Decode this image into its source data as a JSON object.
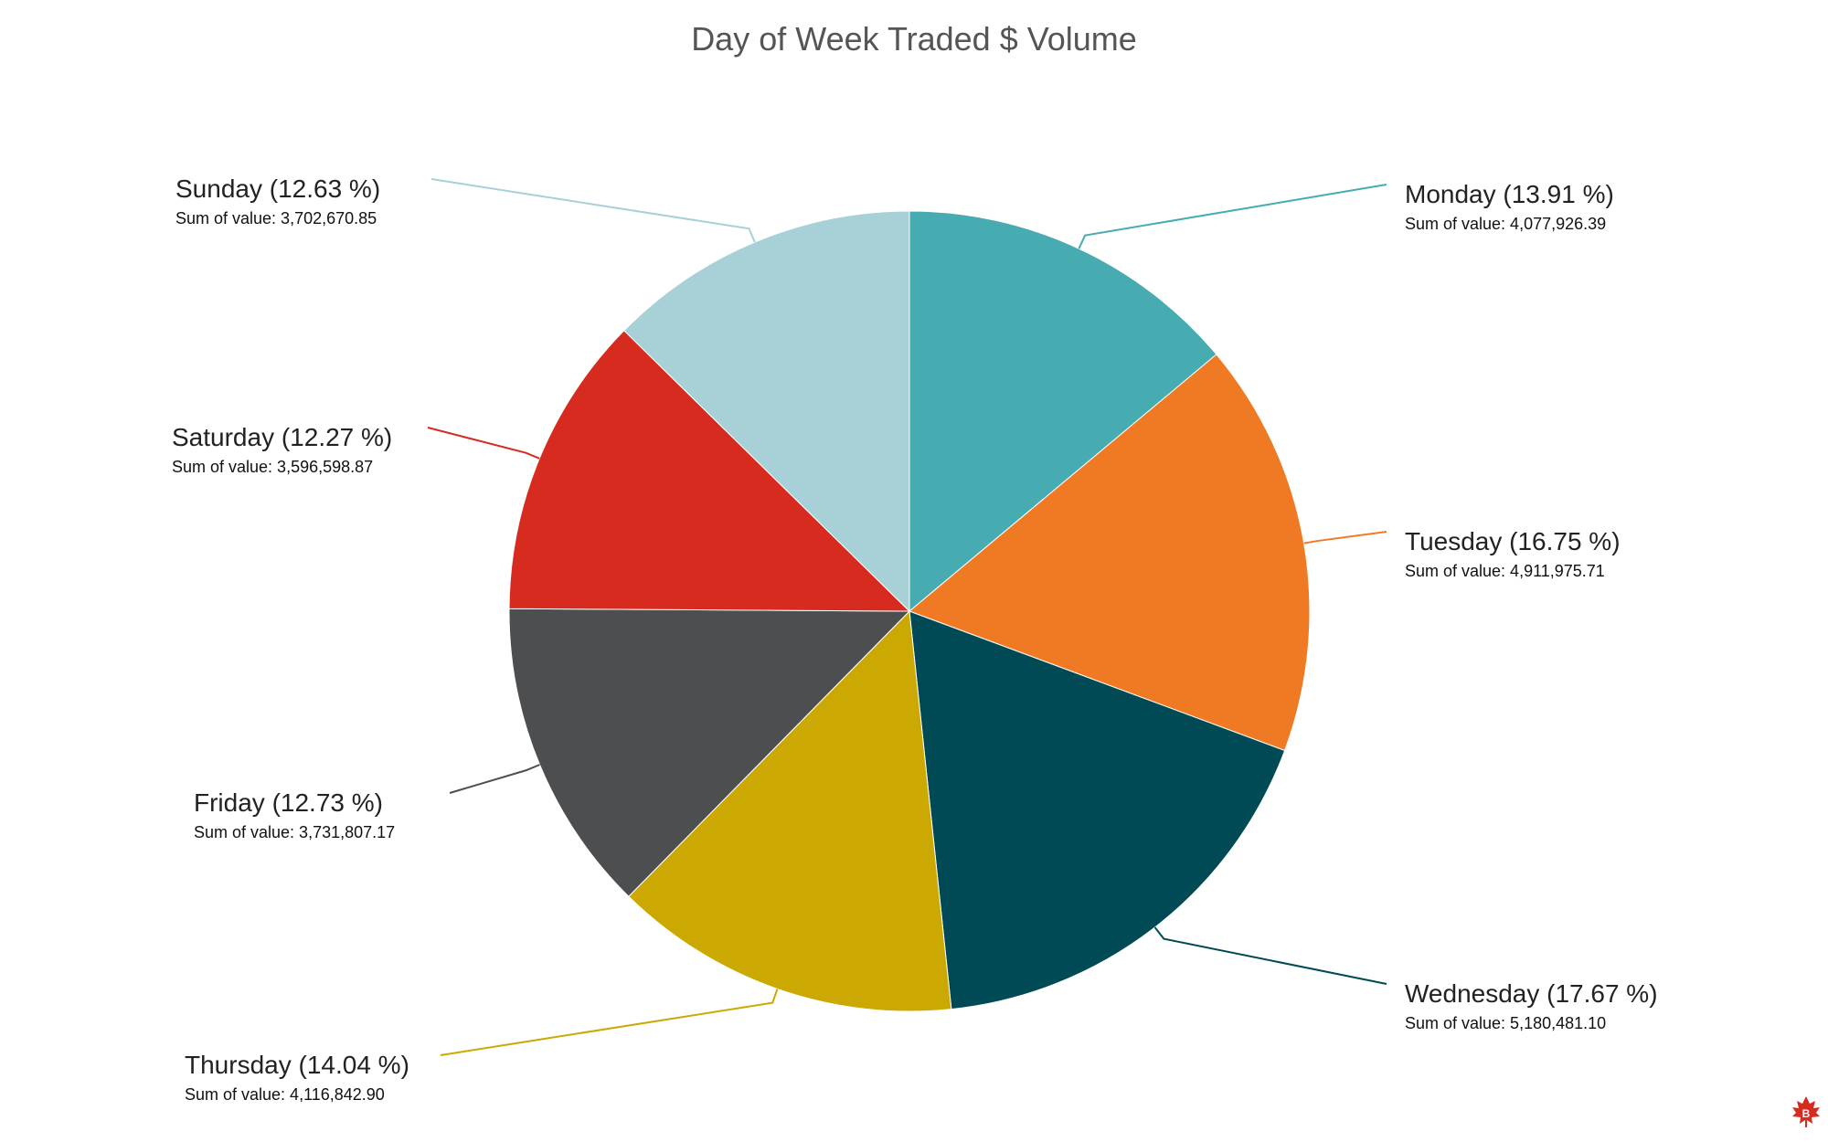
{
  "chart_data": {
    "type": "pie",
    "title": "Day of Week Traded $ Volume",
    "start_angle_deg": 0,
    "direction": "clockwise",
    "slices": [
      {
        "name": "Monday",
        "percent": 13.91,
        "value": 4077926.39,
        "label": "Monday (13.91 %)",
        "sublabel": "Sum of value: 4,077,926.39",
        "color": "#47acb2"
      },
      {
        "name": "Tuesday",
        "percent": 16.75,
        "value": 4911975.71,
        "label": "Tuesday (16.75 %)",
        "sublabel": "Sum of value: 4,911,975.71",
        "color": "#f07a24"
      },
      {
        "name": "Wednesday",
        "percent": 17.67,
        "value": 5180481.1,
        "label": "Wednesday (17.67 %)",
        "sublabel": "Sum of value: 5,180,481.10",
        "color": "#004a56"
      },
      {
        "name": "Thursday",
        "percent": 14.04,
        "value": 4116842.9,
        "label": "Thursday (14.04 %)",
        "sublabel": "Sum of value: 4,116,842.90",
        "color": "#cba902"
      },
      {
        "name": "Friday",
        "percent": 12.73,
        "value": 3731807.17,
        "label": "Friday (12.73 %)",
        "sublabel": "Sum of value: 3,731,807.17",
        "color": "#4d4e50"
      },
      {
        "name": "Saturday",
        "percent": 12.27,
        "value": 3596598.87,
        "label": "Saturday (12.27 %)",
        "sublabel": "Sum of value: 3,596,598.87",
        "color": "#d72b20"
      },
      {
        "name": "Sunday",
        "percent": 12.63,
        "value": 3702670.85,
        "label": "Sunday (12.63 %)",
        "sublabel": "Sum of value: 3,702,670.85",
        "color": "#a7d1d6"
      }
    ]
  },
  "watermark": {
    "icon": "maple-leaf-bitcoin-icon",
    "color": "#d72b20"
  }
}
